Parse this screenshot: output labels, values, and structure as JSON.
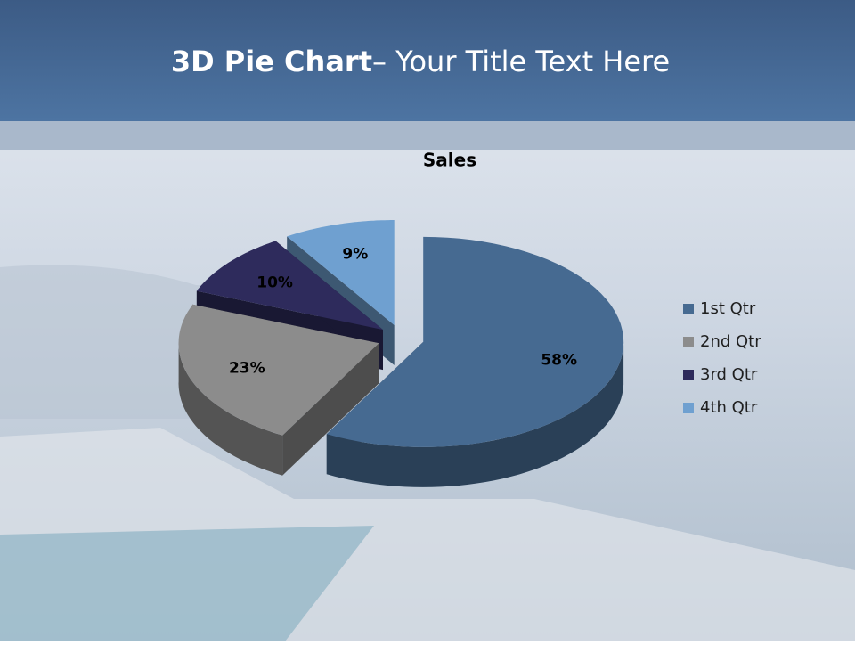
{
  "slide": {
    "title_bold": "3D Pie Chart",
    "title_rest": "– Your Title Text Here"
  },
  "chart_data": {
    "type": "pie3d",
    "title": "Sales",
    "categories": [
      "1st Qtr",
      "2nd Qtr",
      "3rd Qtr",
      "4th Qtr"
    ],
    "values": [
      58,
      23,
      10,
      9
    ],
    "value_labels": [
      "58%",
      "23%",
      "10%",
      "9%"
    ],
    "colors": [
      "#466a91",
      "#8c8c8c",
      "#2e2b5c",
      "#6fa0d0"
    ],
    "legend": "right"
  }
}
